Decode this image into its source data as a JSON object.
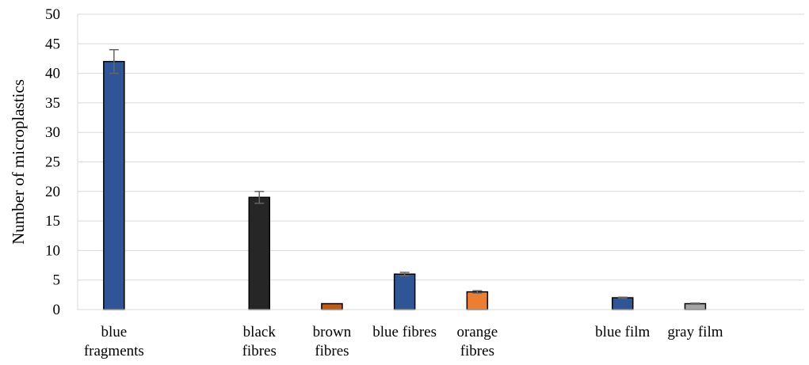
{
  "chart_data": {
    "type": "bar",
    "title": "",
    "xlabel": "",
    "ylabel": "Number of microplastics",
    "ylim": [
      0,
      50
    ],
    "ytick_step": 5,
    "grid": "horizontal",
    "legend": "none",
    "category_count": 10,
    "categories": [
      {
        "label_lines": [
          "blue",
          "fragments"
        ],
        "value": 42,
        "error": 2,
        "color": "#2f5597"
      },
      {
        "label_lines": [],
        "value": null,
        "error": null,
        "color": null
      },
      {
        "label_lines": [
          "black",
          "fibres"
        ],
        "value": 19,
        "error": 1,
        "color": "#262626"
      },
      {
        "label_lines": [
          "brown",
          "fibres"
        ],
        "value": 1,
        "error": 0,
        "color": "#c55a11"
      },
      {
        "label_lines": [
          "blue fibres"
        ],
        "value": 6,
        "error": 0.3,
        "color": "#2f5597"
      },
      {
        "label_lines": [
          "orange",
          "fibres"
        ],
        "value": 3,
        "error": 0.2,
        "color": "#ed7d31"
      },
      {
        "label_lines": [],
        "value": null,
        "error": null,
        "color": null
      },
      {
        "label_lines": [
          "blue film"
        ],
        "value": 2,
        "error": 0.1,
        "color": "#2f5597"
      },
      {
        "label_lines": [
          "gray film"
        ],
        "value": 1,
        "error": 0.1,
        "color": "#a5a5a5"
      },
      {
        "label_lines": [],
        "value": null,
        "error": null,
        "color": null
      }
    ]
  }
}
